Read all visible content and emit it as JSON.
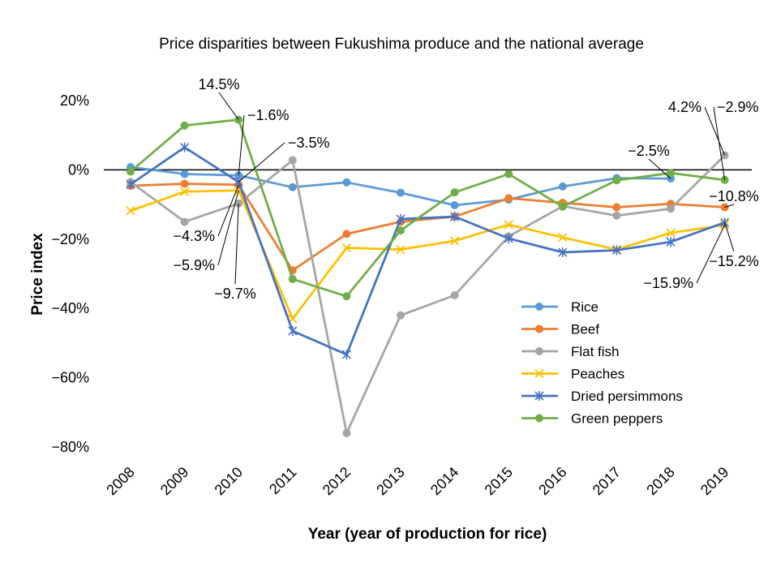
{
  "chart_data": {
    "type": "line",
    "title": "Price disparities between Fukushima produce and the national average",
    "xlabel": "Year (year of production for rice)",
    "ylabel": "Price index",
    "categories": [
      "2008",
      "2009",
      "2010",
      "2011",
      "2012",
      "2013",
      "2014",
      "2015",
      "2016",
      "2017",
      "2018",
      "2019"
    ],
    "ylim": [
      -80,
      20
    ],
    "yticks": [
      20,
      0,
      -20,
      -40,
      -60,
      -80
    ],
    "ytick_labels": [
      "20%",
      "0%",
      "−20%",
      "−40%",
      "−60%",
      "−80%"
    ],
    "grid": false,
    "zero_line": true,
    "legend_position": "lower-right",
    "series": [
      {
        "name": "Rice",
        "color": "#5B9BD5",
        "marker": "circle",
        "values": [
          0.8,
          -1.2,
          -1.6,
          -5.0,
          -3.6,
          -6.6,
          -10.2,
          -8.6,
          -4.8,
          -2.4,
          -2.5,
          null
        ]
      },
      {
        "name": "Beef",
        "color": "#ED7D31",
        "marker": "circle",
        "values": [
          -4.6,
          -4.0,
          -4.3,
          -29.0,
          -18.5,
          -15.0,
          -13.5,
          -8.2,
          -9.5,
          -10.8,
          -9.8,
          -10.8
        ]
      },
      {
        "name": "Flat fish",
        "color": "#A5A5A5",
        "marker": "circle",
        "values": [
          -3.5,
          -15.0,
          -9.7,
          2.8,
          -76.0,
          -42.0,
          -36.2,
          -19.2,
          -10.5,
          -13.2,
          -11.2,
          4.2
        ]
      },
      {
        "name": "Peaches",
        "color": "#FFC000",
        "marker": "x",
        "values": [
          -11.8,
          -6.3,
          -5.9,
          -43.0,
          -22.5,
          -23.0,
          -20.5,
          -15.8,
          -19.5,
          -23.0,
          -18.2,
          -15.9
        ]
      },
      {
        "name": "Dried persimmons",
        "color": "#4472C4",
        "marker": "asterisk",
        "values": [
          -4.2,
          6.5,
          -3.5,
          -46.5,
          -53.3,
          -14.2,
          -13.5,
          -19.8,
          -23.8,
          -23.2,
          -20.8,
          -15.2
        ]
      },
      {
        "name": "Green peppers",
        "color": "#70AD47",
        "marker": "circle",
        "values": [
          -0.5,
          12.8,
          14.5,
          -31.5,
          -36.5,
          -17.5,
          -6.5,
          -1.2,
          -10.6,
          -3.0,
          -0.9,
          -2.9
        ]
      }
    ],
    "annotations": [
      {
        "text": "14.5%",
        "series": "Green peppers",
        "x": "2010",
        "y": 14.5
      },
      {
        "text": "−1.6%",
        "series": "Rice",
        "x": "2010",
        "y": -1.6
      },
      {
        "text": "−3.5%",
        "series": "Dried persimmons",
        "x": "2010",
        "y": -3.5
      },
      {
        "text": "−4.3%",
        "series": "Beef",
        "x": "2010",
        "y": -4.3
      },
      {
        "text": "−5.9%",
        "series": "Peaches",
        "x": "2010",
        "y": -5.9
      },
      {
        "text": "−9.7%",
        "series": "Flat fish",
        "x": "2010",
        "y": -9.7
      },
      {
        "text": "4.2%",
        "series": "Flat fish",
        "x": "2019",
        "y": 4.2
      },
      {
        "text": "−2.9%",
        "series": "Green peppers",
        "x": "2019",
        "y": -2.9
      },
      {
        "text": "−2.5%",
        "series": "Rice",
        "x": "2018",
        "y": -2.5
      },
      {
        "text": "−10.8%",
        "series": "Beef",
        "x": "2019",
        "y": -10.8
      },
      {
        "text": "−15.2%",
        "series": "Dried persimmons",
        "x": "2019",
        "y": -15.2
      },
      {
        "text": "−15.9%",
        "series": "Peaches",
        "x": "2019",
        "y": -15.9
      }
    ]
  }
}
